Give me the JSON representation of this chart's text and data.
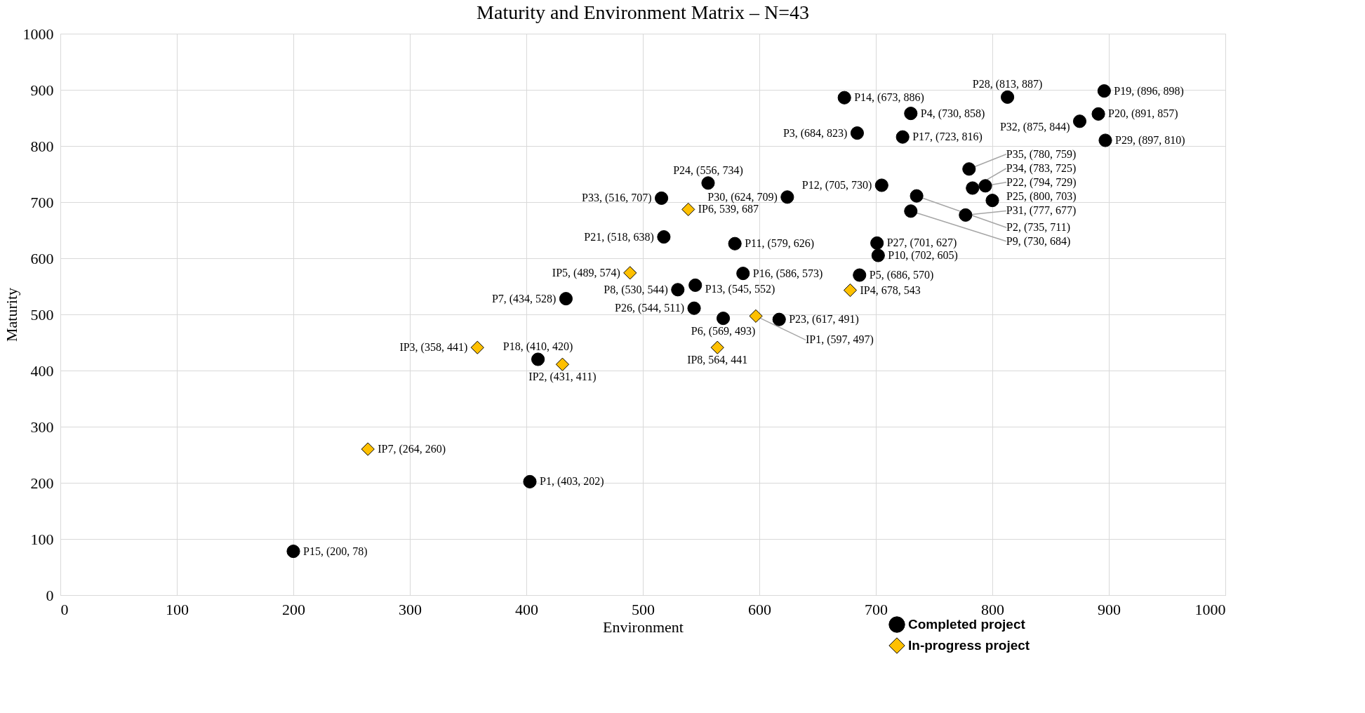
{
  "chart_data": {
    "type": "scatter",
    "title": "Maturity and Environment Matrix – N=43",
    "xlabel": "Environment",
    "ylabel": "Maturity",
    "xlim": [
      0,
      1000
    ],
    "xticks": [
      0,
      100,
      200,
      300,
      400,
      500,
      600,
      700,
      800,
      900,
      1000
    ],
    "ylim": [
      0,
      1000
    ],
    "yticks": [
      0,
      100,
      200,
      300,
      400,
      500,
      600,
      700,
      800,
      900,
      1000
    ],
    "grid": true,
    "legend": "bottom right",
    "series": [
      {
        "name": "Completed project",
        "color": "#000000",
        "marker": "circle",
        "x": [
          403,
          735,
          684,
          730,
          686,
          569,
          434,
          530,
          730,
          702,
          579,
          705,
          545,
          673,
          200,
          586,
          723,
          410,
          896,
          891,
          518,
          794,
          617,
          556,
          800,
          544,
          701,
          813,
          897,
          624,
          777,
          875,
          516,
          783,
          780
        ],
        "values": [
          202,
          711,
          823,
          858,
          570,
          493,
          528,
          544,
          684,
          605,
          626,
          730,
          552,
          886,
          78,
          573,
          816,
          420,
          898,
          857,
          638,
          729,
          491,
          734,
          703,
          511,
          627,
          887,
          810,
          709,
          677,
          844,
          707,
          725,
          759
        ],
        "value_labels": [
          "P1, (403, 202)",
          "P2, (735, 711)",
          "P3, (684, 823)",
          "P4, (730, 858)",
          "P5, (686, 570)",
          "P6, (569, 493)",
          "P7, (434, 528)",
          "P8, (530, 544)",
          "P9, (730, 684)",
          "P10, (702, 605)",
          "P11, (579, 626)",
          "P12, (705, 730)",
          "P13, (545, 552)",
          "P14, (673, 886)",
          "P15, (200, 78)",
          "P16, (586, 573)",
          "P17, (723, 816)",
          "P18, (410, 420)",
          "P19, (896, 898)",
          "P20, (891, 857)",
          "P21, (518, 638)",
          "P22, (794, 729)",
          "P23, (617, 491)",
          "P24, (556, 734)",
          "P25, (800, 703)",
          "P26, (544, 511)",
          "P27, (701, 627)",
          "P28, (813, 887)",
          "P29, (897, 810)",
          "P30, (624, 709)",
          "P31, (777, 677)",
          "P32, (875, 844)",
          "P33, (516, 707)",
          "P34, (783, 725)",
          "P35, (780, 759)"
        ]
      },
      {
        "name": "In-progress project",
        "color": "#ffc000",
        "marker": "diamond",
        "x": [
          597,
          431,
          358,
          678,
          489,
          539,
          264,
          564
        ],
        "values": [
          497,
          411,
          441,
          543,
          574,
          687,
          260,
          441
        ],
        "value_labels": [
          "IP1, (597, 497)",
          "IP2, (431, 411)",
          "IP3, (358, 441)",
          "IP4, 678, 543",
          "IP5, (489, 574)",
          "IP6, 539, 687",
          "IP7, (264, 260)",
          "IP8, 564, 441"
        ]
      }
    ]
  }
}
